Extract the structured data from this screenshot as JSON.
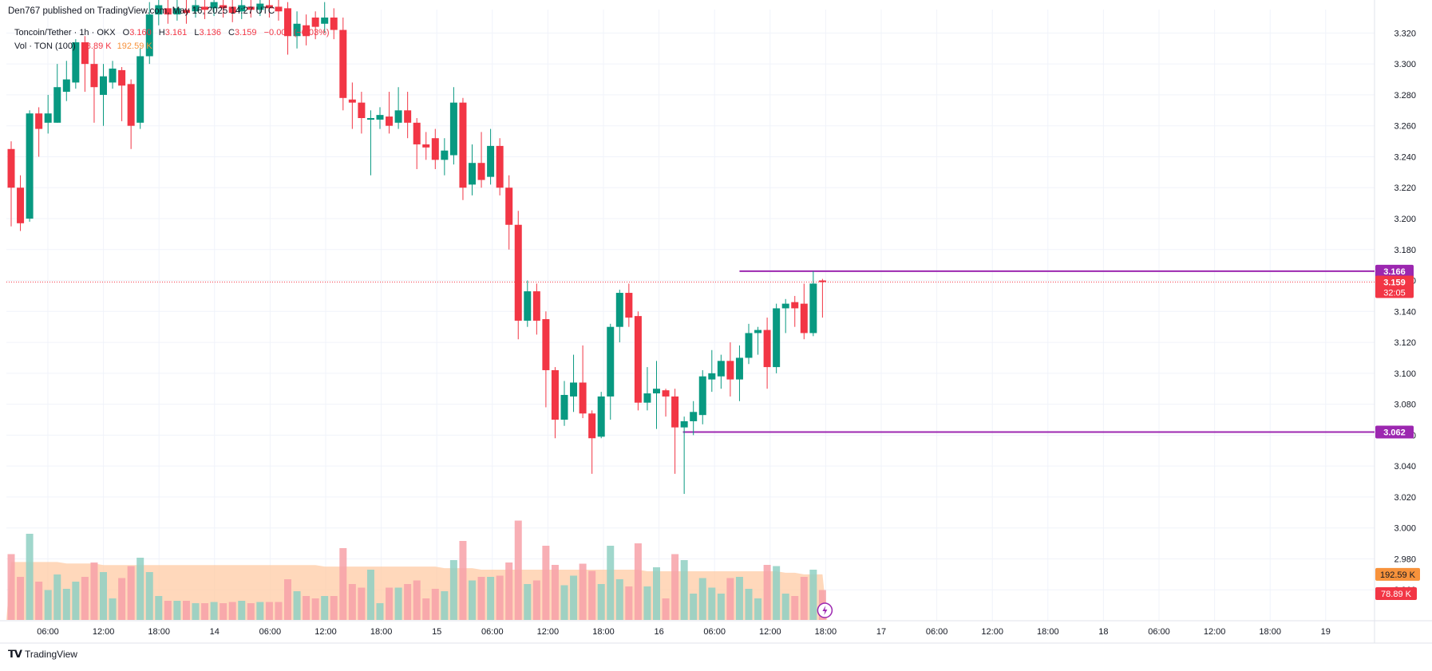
{
  "published": "Den767 published on TradingView.com, May 16, 2025 14:27 UTC",
  "legend": {
    "symbol": "Toncoin/Tether · 1h · OKX",
    "o_label": "O",
    "o_value": "3.160",
    "h_label": "H",
    "h_value": "3.161",
    "l_label": "L",
    "l_value": "3.136",
    "c_label": "C",
    "c_value": "3.159",
    "change": "−0.001 (−0.03%)",
    "vol_label": "Vol · TON (100)",
    "vol_value": "78.89 K",
    "vol_ma": "192.59 K"
  },
  "footer": {
    "brand": "TradingView"
  },
  "colors": {
    "up": "#089981",
    "down": "#f23645",
    "level": "#9c27b0",
    "vol_ma_fill": "#ffcba4",
    "vol_up": "#8fd0c3",
    "vol_down": "#f7a1a8",
    "vol_mixed": "#c9b79b",
    "vol_orange": "#f9a27a"
  },
  "chart_data": {
    "type": "candlestick",
    "interval": "1h",
    "y_ticks": [
      "3.320",
      "3.300",
      "3.280",
      "3.260",
      "3.240",
      "3.220",
      "3.200",
      "3.180",
      "3.160",
      "3.140",
      "3.120",
      "3.100",
      "3.080",
      "3.060",
      "3.040",
      "3.020",
      "3.000",
      "2.980",
      "2.960"
    ],
    "ylim": [
      2.94,
      3.33
    ],
    "x_ticks": [
      "06:00",
      "12:00",
      "18:00",
      "14",
      "06:00",
      "12:00",
      "18:00",
      "15",
      "06:00",
      "12:00",
      "18:00",
      "16",
      "06:00",
      "12:00",
      "18:00",
      "17",
      "06:00",
      "12:00",
      "18:00",
      "18",
      "06:00",
      "12:00",
      "18:00",
      "19"
    ],
    "price_labels": {
      "level_high": "3.166",
      "current": "3.159",
      "countdown": "32:05",
      "level_low": "3.062",
      "vol_ma": "192.59 K",
      "vol": "78.89 K"
    },
    "levels": [
      3.166,
      3.062
    ],
    "current_price": 3.159,
    "candles": [
      [
        3.245,
        3.22,
        3.25,
        3.195
      ],
      [
        3.22,
        3.197,
        3.228,
        3.192
      ],
      [
        3.2,
        3.268,
        3.27,
        3.198
      ],
      [
        3.268,
        3.258,
        3.272,
        3.24
      ],
      [
        3.262,
        3.268,
        3.28,
        3.255
      ],
      [
        3.262,
        3.285,
        3.3,
        3.262
      ],
      [
        3.282,
        3.29,
        3.302,
        3.276
      ],
      [
        3.288,
        3.314,
        3.316,
        3.284
      ],
      [
        3.314,
        3.3,
        3.318,
        3.282
      ],
      [
        3.3,
        3.285,
        3.31,
        3.262
      ],
      [
        3.28,
        3.292,
        3.3,
        3.26
      ],
      [
        3.288,
        3.297,
        3.302,
        3.284
      ],
      [
        3.296,
        3.286,
        3.298,
        3.263
      ],
      [
        3.287,
        3.26,
        3.29,
        3.245
      ],
      [
        3.262,
        3.305,
        3.31,
        3.258
      ],
      [
        3.305,
        3.332,
        3.34,
        3.3
      ],
      [
        3.332,
        3.338,
        3.345,
        3.325
      ],
      [
        3.336,
        3.332,
        3.342,
        3.326
      ],
      [
        3.332,
        3.336,
        3.344,
        3.328
      ],
      [
        3.335,
        3.333,
        3.342,
        3.326
      ],
      [
        3.334,
        3.338,
        3.344,
        3.33
      ],
      [
        3.337,
        3.335,
        3.343,
        3.329
      ],
      [
        3.336,
        3.34,
        3.346,
        3.331
      ],
      [
        3.338,
        3.336,
        3.344,
        3.33
      ],
      [
        3.337,
        3.333,
        3.342,
        3.327
      ],
      [
        3.334,
        3.338,
        3.345,
        3.329
      ],
      [
        3.337,
        3.335,
        3.344,
        3.33
      ],
      [
        3.335,
        3.339,
        3.346,
        3.331
      ],
      [
        3.338,
        3.336,
        3.345,
        3.33
      ],
      [
        3.337,
        3.334,
        3.343,
        3.328
      ],
      [
        3.336,
        3.318,
        3.34,
        3.306
      ],
      [
        3.318,
        3.326,
        3.334,
        3.31
      ],
      [
        3.325,
        3.318,
        3.332,
        3.312
      ],
      [
        3.33,
        3.324,
        3.334,
        3.316
      ],
      [
        3.326,
        3.33,
        3.34,
        3.32
      ],
      [
        3.33,
        3.322,
        3.336,
        3.316
      ],
      [
        3.322,
        3.278,
        3.33,
        3.27
      ],
      [
        3.277,
        3.275,
        3.288,
        3.258
      ],
      [
        3.275,
        3.265,
        3.282,
        3.255
      ],
      [
        3.264,
        3.265,
        3.27,
        3.228
      ],
      [
        3.264,
        3.267,
        3.272,
        3.258
      ],
      [
        3.266,
        3.26,
        3.282,
        3.255
      ],
      [
        3.262,
        3.27,
        3.285,
        3.258
      ],
      [
        3.27,
        3.262,
        3.282,
        3.252
      ],
      [
        3.262,
        3.248,
        3.265,
        3.232
      ],
      [
        3.248,
        3.246,
        3.256,
        3.238
      ],
      [
        3.252,
        3.238,
        3.258,
        3.232
      ],
      [
        3.238,
        3.244,
        3.252,
        3.228
      ],
      [
        3.241,
        3.275,
        3.285,
        3.235
      ],
      [
        3.275,
        3.22,
        3.278,
        3.212
      ],
      [
        3.222,
        3.236,
        3.248,
        3.215
      ],
      [
        3.236,
        3.225,
        3.256,
        3.22
      ],
      [
        3.227,
        3.247,
        3.258,
        3.222
      ],
      [
        3.247,
        3.22,
        3.252,
        3.215
      ],
      [
        3.22,
        3.196,
        3.228,
        3.18
      ],
      [
        3.196,
        3.134,
        3.205,
        3.122
      ],
      [
        3.134,
        3.153,
        3.16,
        3.13
      ],
      [
        3.153,
        3.134,
        3.158,
        3.125
      ],
      [
        3.135,
        3.102,
        3.14,
        3.078
      ],
      [
        3.102,
        3.07,
        3.104,
        3.058
      ],
      [
        3.07,
        3.086,
        3.095,
        3.066
      ],
      [
        3.085,
        3.094,
        3.112,
        3.075
      ],
      [
        3.094,
        3.074,
        3.118,
        3.071
      ],
      [
        3.074,
        3.058,
        3.076,
        3.035
      ],
      [
        3.059,
        3.085,
        3.088,
        3.058
      ],
      [
        3.085,
        3.13,
        3.132,
        3.07
      ],
      [
        3.13,
        3.152,
        3.154,
        3.12
      ],
      [
        3.152,
        3.136,
        3.158,
        3.13
      ],
      [
        3.137,
        3.081,
        3.14,
        3.076
      ],
      [
        3.081,
        3.087,
        3.104,
        3.076
      ],
      [
        3.087,
        3.09,
        3.108,
        3.064
      ],
      [
        3.089,
        3.085,
        3.09,
        3.072
      ],
      [
        3.085,
        3.065,
        3.09,
        3.035
      ],
      [
        3.065,
        3.069,
        3.072,
        3.022
      ],
      [
        3.069,
        3.075,
        3.082,
        3.06
      ],
      [
        3.073,
        3.098,
        3.102,
        3.067
      ],
      [
        3.096,
        3.1,
        3.115,
        3.088
      ],
      [
        3.098,
        3.108,
        3.112,
        3.09
      ],
      [
        3.108,
        3.096,
        3.12,
        3.085
      ],
      [
        3.096,
        3.11,
        3.118,
        3.082
      ],
      [
        3.11,
        3.126,
        3.132,
        3.106
      ],
      [
        3.126,
        3.128,
        3.13,
        3.112
      ],
      [
        3.128,
        3.104,
        3.136,
        3.09
      ],
      [
        3.104,
        3.142,
        3.145,
        3.1
      ],
      [
        3.142,
        3.145,
        3.148,
        3.126
      ],
      [
        3.146,
        3.142,
        3.15,
        3.13
      ],
      [
        3.145,
        3.126,
        3.158,
        3.122
      ],
      [
        3.126,
        3.158,
        3.166,
        3.124
      ],
      [
        3.16,
        3.159,
        3.161,
        3.136
      ]
    ],
    "volume_ma": [
      2.978,
      2.978,
      2.978,
      2.978,
      2.978,
      2.978,
      2.977,
      2.977,
      2.977,
      2.977,
      2.976,
      2.976,
      2.976,
      2.976,
      2.976,
      2.976,
      2.976,
      2.976,
      2.976,
      2.976,
      2.976,
      2.976,
      2.976,
      2.976,
      2.976,
      2.976,
      2.976,
      2.976,
      2.976,
      2.976,
      2.976,
      2.976,
      2.976,
      2.976,
      2.975,
      2.975,
      2.975,
      2.975,
      2.975,
      2.975,
      2.975,
      2.975,
      2.975,
      2.975,
      2.975,
      2.975,
      2.975,
      2.974,
      2.974,
      2.974,
      2.974,
      2.973,
      2.973,
      2.973,
      2.973,
      2.973,
      2.973,
      2.973,
      2.973,
      2.973,
      2.973,
      2.973,
      2.973,
      2.973,
      2.973,
      2.973,
      2.973,
      2.973,
      2.973,
      2.972,
      2.972,
      2.972,
      2.972,
      2.972,
      2.972,
      2.972,
      2.972,
      2.972,
      2.972,
      2.972,
      2.972,
      2.972,
      2.972,
      2.972,
      2.971,
      2.971,
      2.97,
      2.97,
      2.97
    ]
  }
}
